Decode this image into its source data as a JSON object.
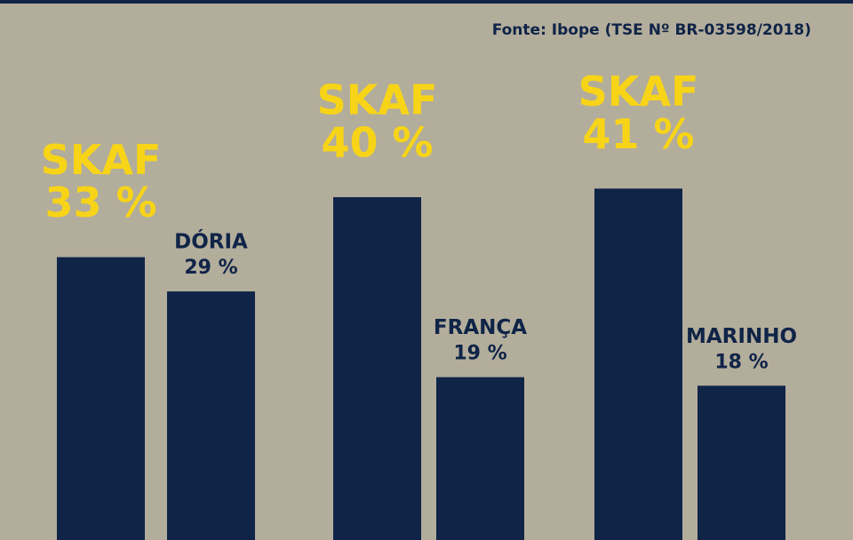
{
  "chart_data": {
    "type": "bar",
    "source": "Fonte: Ibope (TSE Nº BR-03598/2018)",
    "categories": [
      "SKAF",
      "DÓRIA",
      "SKAF",
      "FRANÇA",
      "SKAF",
      "MARINHO"
    ],
    "values": [
      33,
      29,
      40,
      19,
      41,
      18
    ],
    "value_labels": [
      "33 %",
      "29 %",
      "40 %",
      "19 %",
      "41 %",
      "18 %"
    ],
    "color": "#0f2447"
  }
}
